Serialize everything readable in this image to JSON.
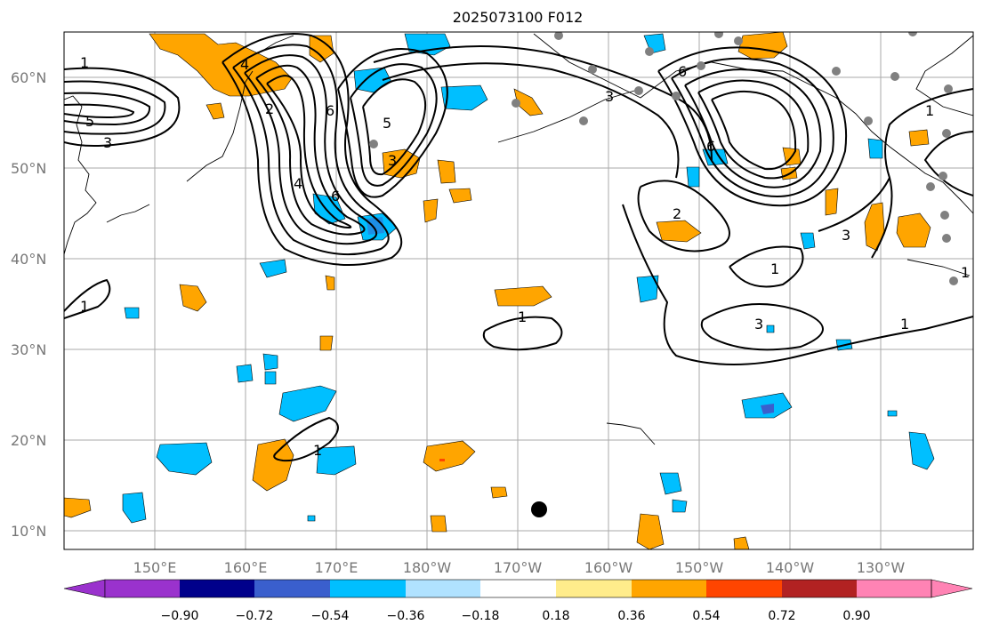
{
  "title": "2025073100 F012",
  "lat_labels": [
    "60°N",
    "50°N",
    "40°N",
    "30°N",
    "20°N",
    "10°N"
  ],
  "lon_labels": [
    "150°E",
    "160°E",
    "170°E",
    "180°W",
    "170°W",
    "160°W",
    "150°W",
    "140°W",
    "130°W"
  ],
  "contour_labels": [
    "1",
    "1",
    "3",
    "5",
    "4",
    "2",
    "6",
    "6",
    "5",
    "3",
    "4",
    "3",
    "6",
    "1",
    "2",
    "1",
    "3",
    "1",
    "1",
    "3",
    "1",
    "1",
    "6"
  ],
  "colorbar": {
    "levels": [
      "−0.90",
      "−0.72",
      "−0.54",
      "−0.36",
      "−0.18",
      "0.18",
      "0.36",
      "0.54",
      "0.72",
      "0.90"
    ],
    "colors": [
      "#9a32cd",
      "#00008b",
      "#3a5fcd",
      "#00bfff",
      "#b0e2ff",
      "#ffffff",
      "#ffec8b",
      "#ffa500",
      "#ff4500",
      "#b22222",
      "#ff83b4"
    ]
  },
  "fill_colors": {
    "positive": "#ffa500",
    "negative": "#00bfff",
    "strong_negative": "#3a5fcd",
    "strong_positive": "#ff4500"
  },
  "markers": {
    "storm_dot_color": "#000000",
    "station_dot_color": "#808080"
  }
}
